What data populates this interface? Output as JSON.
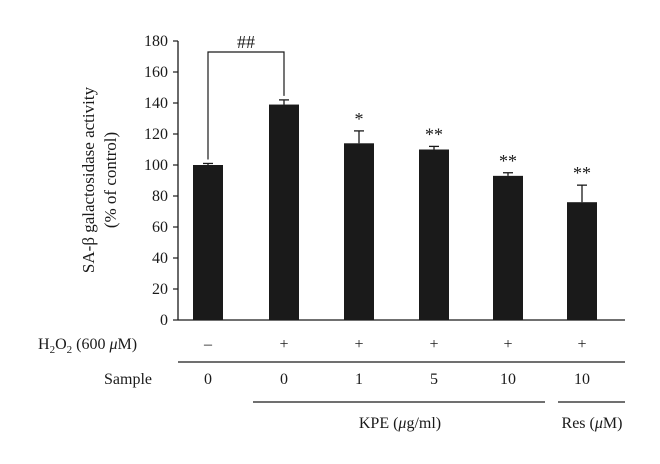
{
  "chart_data": {
    "type": "bar",
    "ylabel_line1": "SA-β galactosidase activity",
    "ylabel_line2": "(% of control)",
    "ylim": [
      0,
      180
    ],
    "yticks": [
      0,
      20,
      40,
      60,
      80,
      100,
      120,
      140,
      160,
      180
    ],
    "values": [
      100,
      139,
      114,
      110,
      93,
      76
    ],
    "errors": [
      1,
      3,
      8,
      2,
      2,
      11
    ],
    "significance": [
      "",
      "",
      "*",
      "**",
      "**",
      "**"
    ],
    "bracket_label": "##",
    "colors": {
      "bar": "#1a1a1a",
      "axis": "#1a1a1a"
    },
    "rows": {
      "h2o2": {
        "label": "H2O2 (600 μM)",
        "values": [
          "–",
          "+",
          "+",
          "+",
          "+",
          "+"
        ]
      },
      "sample": {
        "label": "Sample",
        "values": [
          "0",
          "0",
          "1",
          "5",
          "10",
          "10"
        ]
      }
    },
    "groups": [
      {
        "label": "KPE (μg/ml)"
      },
      {
        "label": "Res (μM)"
      }
    ]
  }
}
